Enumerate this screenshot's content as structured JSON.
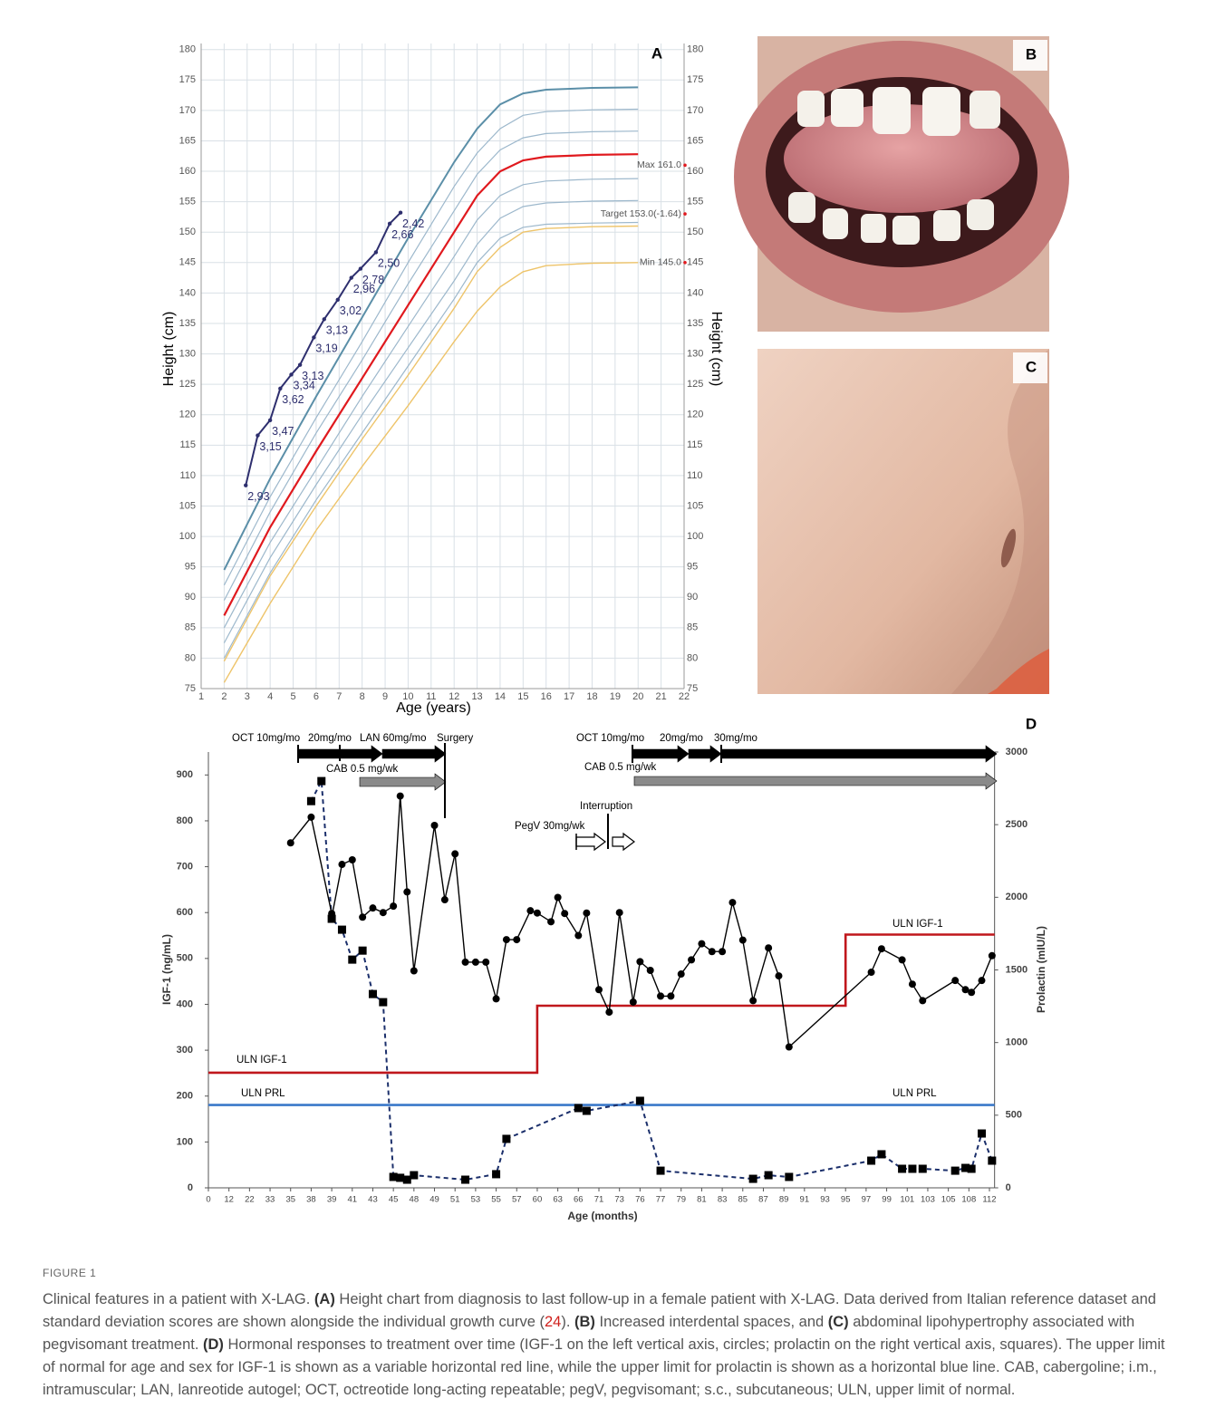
{
  "chart_data": [
    {
      "type": "line",
      "panel": "A",
      "xlabel": "Age (years)",
      "ylabel": "Height (cm)",
      "y2label": "Height (cm)",
      "xlim": [
        1,
        22
      ],
      "xticks": [
        1,
        2,
        3,
        4,
        5,
        6,
        7,
        8,
        9,
        10,
        11,
        12,
        13,
        14,
        15,
        16,
        17,
        18,
        19,
        20,
        21,
        22
      ],
      "ylim": [
        75,
        181
      ],
      "yticks": [
        75,
        80,
        85,
        90,
        95,
        100,
        105,
        110,
        115,
        120,
        125,
        130,
        135,
        140,
        145,
        150,
        155,
        160,
        165,
        170,
        175,
        180
      ],
      "grid": true,
      "x": [
        2,
        4,
        6,
        8,
        10,
        12,
        13,
        14,
        15,
        16,
        18,
        20
      ],
      "series": [
        {
          "color": "#2e2f6e",
          "marker": "circle",
          "x": [
            2.94,
            3.46,
            4.0,
            4.44,
            4.92,
            5.3,
            5.9,
            6.35,
            6.94,
            7.53,
            7.93,
            8.6,
            9.2,
            9.67
          ],
          "values": [
            108.4,
            116.6,
            119.1,
            124.3,
            126.6,
            128.2,
            132.7,
            135.7,
            138.9,
            142.5,
            144.0,
            146.7,
            151.4,
            153.2
          ],
          "sds_labels": [
            "2,93",
            "3,15",
            "3,47",
            "3,62",
            "3,34",
            "3,13",
            "3,19",
            "3,13",
            "3,02",
            "2,96",
            "2,78",
            "2,50",
            "2,66",
            "2,42"
          ]
        },
        {
          "color": "#5b8fa8",
          "width": 2,
          "values": [
            94.5,
            109.5,
            123,
            136,
            149,
            161.5,
            167,
            171,
            172.8,
            173.4,
            173.7,
            173.8
          ]
        },
        {
          "color": "#9db8cc",
          "width": 1.2,
          "values": [
            92,
            106.5,
            119.5,
            132,
            145,
            157.5,
            163,
            167,
            169.2,
            169.8,
            170.1,
            170.2
          ]
        },
        {
          "color": "#9db8cc",
          "width": 1.2,
          "values": [
            89.5,
            104,
            117,
            129,
            141.5,
            153.5,
            159.5,
            163.5,
            165.5,
            166.2,
            166.5,
            166.6
          ]
        },
        {
          "color": "#e0191e",
          "width": 2.2,
          "values": [
            87,
            101.5,
            114,
            126,
            138,
            150,
            156,
            160,
            161.8,
            162.4,
            162.7,
            162.8
          ]
        },
        {
          "color": "#9db8cc",
          "width": 1.2,
          "values": [
            85,
            99,
            111,
            123,
            134.5,
            146,
            152,
            156,
            157.8,
            158.4,
            158.7,
            158.8
          ]
        },
        {
          "color": "#9db8cc",
          "width": 1.2,
          "values": [
            82.5,
            96.5,
            108.5,
            120,
            131,
            142,
            148,
            152.3,
            154.2,
            154.8,
            155.1,
            155.2
          ]
        },
        {
          "color": "#9db8cc",
          "width": 1.2,
          "values": [
            80,
            94,
            106,
            117,
            128,
            139,
            145,
            149,
            150.8,
            151.3,
            151.5,
            151.6
          ]
        },
        {
          "color": "#eec46a",
          "width": 1.4,
          "values": [
            79.5,
            93.5,
            105,
            116,
            126.5,
            137.5,
            143.5,
            147.5,
            150,
            150.6,
            150.9,
            151
          ]
        },
        {
          "color": "#eec46a",
          "width": 1.4,
          "values": [
            76,
            89,
            101,
            111.5,
            121.5,
            132,
            137,
            141,
            143.5,
            144.5,
            144.9,
            145
          ]
        }
      ],
      "annotations": [
        {
          "text": "Max 161.0",
          "value": 161
        },
        {
          "text": "Target 153.0(-1.64)",
          "value": 153
        },
        {
          "text": "Min 145.0",
          "value": 145
        }
      ],
      "annotation_color": "#e0191e"
    },
    {
      "type": "line",
      "panel": "D",
      "xlabel": "Age (months)",
      "ylabel": "IGF-1 (ng/mL)",
      "y2label": "Prolactin (mIU/L)",
      "xlim": [
        0,
        113
      ],
      "xticks": [
        0,
        12,
        22,
        33,
        35,
        38,
        39,
        41,
        43,
        45,
        48,
        49,
        51,
        53,
        55,
        57,
        60,
        63,
        66,
        71,
        73,
        76,
        77,
        79,
        81,
        83,
        85,
        87,
        89,
        91,
        93,
        95,
        97,
        99,
        101,
        103,
        105,
        108,
        112
      ],
      "ylim": [
        0,
        950
      ],
      "yticks": [
        0,
        100,
        200,
        300,
        400,
        500,
        600,
        700,
        800,
        900
      ],
      "y2lim": [
        0,
        3000
      ],
      "y2ticks": [
        0,
        500,
        1000,
        1500,
        2000,
        2500,
        3000
      ],
      "grid": false,
      "series": [
        {
          "color": "#000000",
          "marker": "circle",
          "dash": false,
          "x": [
            35,
            38,
            39,
            39,
            40,
            41,
            42,
            43,
            44,
            45,
            46,
            47,
            48,
            49,
            50,
            51,
            52,
            53,
            54,
            55,
            56,
            57,
            59,
            60,
            62,
            63,
            64,
            66,
            68,
            71,
            72,
            73,
            75,
            76,
            76.5,
            77,
            78,
            79,
            80,
            81,
            82,
            83,
            84,
            85,
            86,
            87.5,
            88.5,
            89.5,
            97.5,
            98.5,
            100.5,
            101.5,
            102.5,
            106,
            107.5,
            108.5,
            110.5,
            112.5
          ],
          "values": [
            752,
            808,
            598,
            590,
            705,
            715,
            590,
            610,
            600,
            614,
            854,
            645,
            473,
            790,
            628,
            728,
            492,
            492,
            492,
            412,
            541,
            541,
            604,
            599,
            580,
            633,
            598,
            550,
            599,
            432,
            383,
            600,
            405,
            493,
            474,
            418,
            418,
            466,
            497,
            532,
            515,
            515,
            622,
            540,
            408,
            523,
            462,
            307,
            470,
            521,
            497,
            444,
            408,
            452,
            432,
            426,
            452,
            506
          ]
        },
        {
          "color": "#1b2f6b",
          "marker_color": "#000000",
          "marker": "square",
          "dash": true,
          "axis": "y2",
          "x": [
            38,
            38.5,
            39,
            40,
            41,
            42,
            43,
            44,
            45,
            46,
            47,
            48,
            52,
            55,
            56,
            66,
            68,
            76,
            77,
            86,
            87.5,
            89.5,
            97.5,
            98.5,
            100.5,
            101.5,
            102.5,
            106,
            107.5,
            108.5,
            110.5,
            112.5
          ],
          "values": [
            2662,
            2800,
            1852,
            1777,
            1571,
            1633,
            1334,
            1278,
            75,
            69,
            56,
            87,
            56,
            94,
            337,
            549,
            530,
            599,
            118,
            62,
            87,
            75,
            187,
            231,
            131,
            131,
            131,
            118,
            137,
            131,
            374,
            187
          ]
        },
        {
          "name": "ULN IGF-1",
          "color": "#c0171c",
          "dash": false,
          "x": [
            0,
            60,
            60,
            95,
            95,
            113
          ],
          "values": [
            251,
            251,
            397,
            397,
            552,
            552
          ]
        },
        {
          "name": "ULN PRL",
          "color": "#3a78c9",
          "dash": false,
          "axis": "y2",
          "x": [
            0,
            113
          ],
          "values": [
            570,
            570
          ]
        }
      ],
      "annotations": [
        "OCT 10mg/mo",
        "20mg/mo",
        "LAN 60mg/mo",
        "Surgery",
        "CAB 0.5 mg/wk",
        "Interruption",
        "PegV 30mg/wk",
        "OCT 10mg/mo",
        "20mg/mo",
        "30mg/mo",
        "CAB 0.5 mg/wk"
      ]
    }
  ],
  "photos": {
    "B": "B",
    "C": "C"
  },
  "figure": {
    "label": "FIGURE 1",
    "caption": [
      "Clinical features in a patient with X-LAG. ",
      "(A)",
      " Height chart from diagnosis to last follow-up in a female patient with X-LAG. Data derived from Italian reference dataset and standard deviation scores are shown alongside the individual growth curve (",
      "24",
      "). ",
      "(B)",
      " Increased interdental spaces, and ",
      "(C)",
      " abdominal lipohypertrophy associated with pegvisomant treatment. ",
      "(D)",
      " Hormonal responses to treatment over time (IGF-1 on the left vertical axis, circles; prolactin on the right vertical axis, squares). The upper limit of normal for age and sex for IGF-1 is shown as a variable horizontal red line, while the upper limit for prolactin is shown as a horizontal blue line. CAB, cabergoline; i.m., intramuscular; LAN, lanreotide autogel; OCT, octreotide long-acting repeatable; pegV, pegvisomant; s.c., subcutaneous; ULN, upper limit of normal."
    ]
  }
}
